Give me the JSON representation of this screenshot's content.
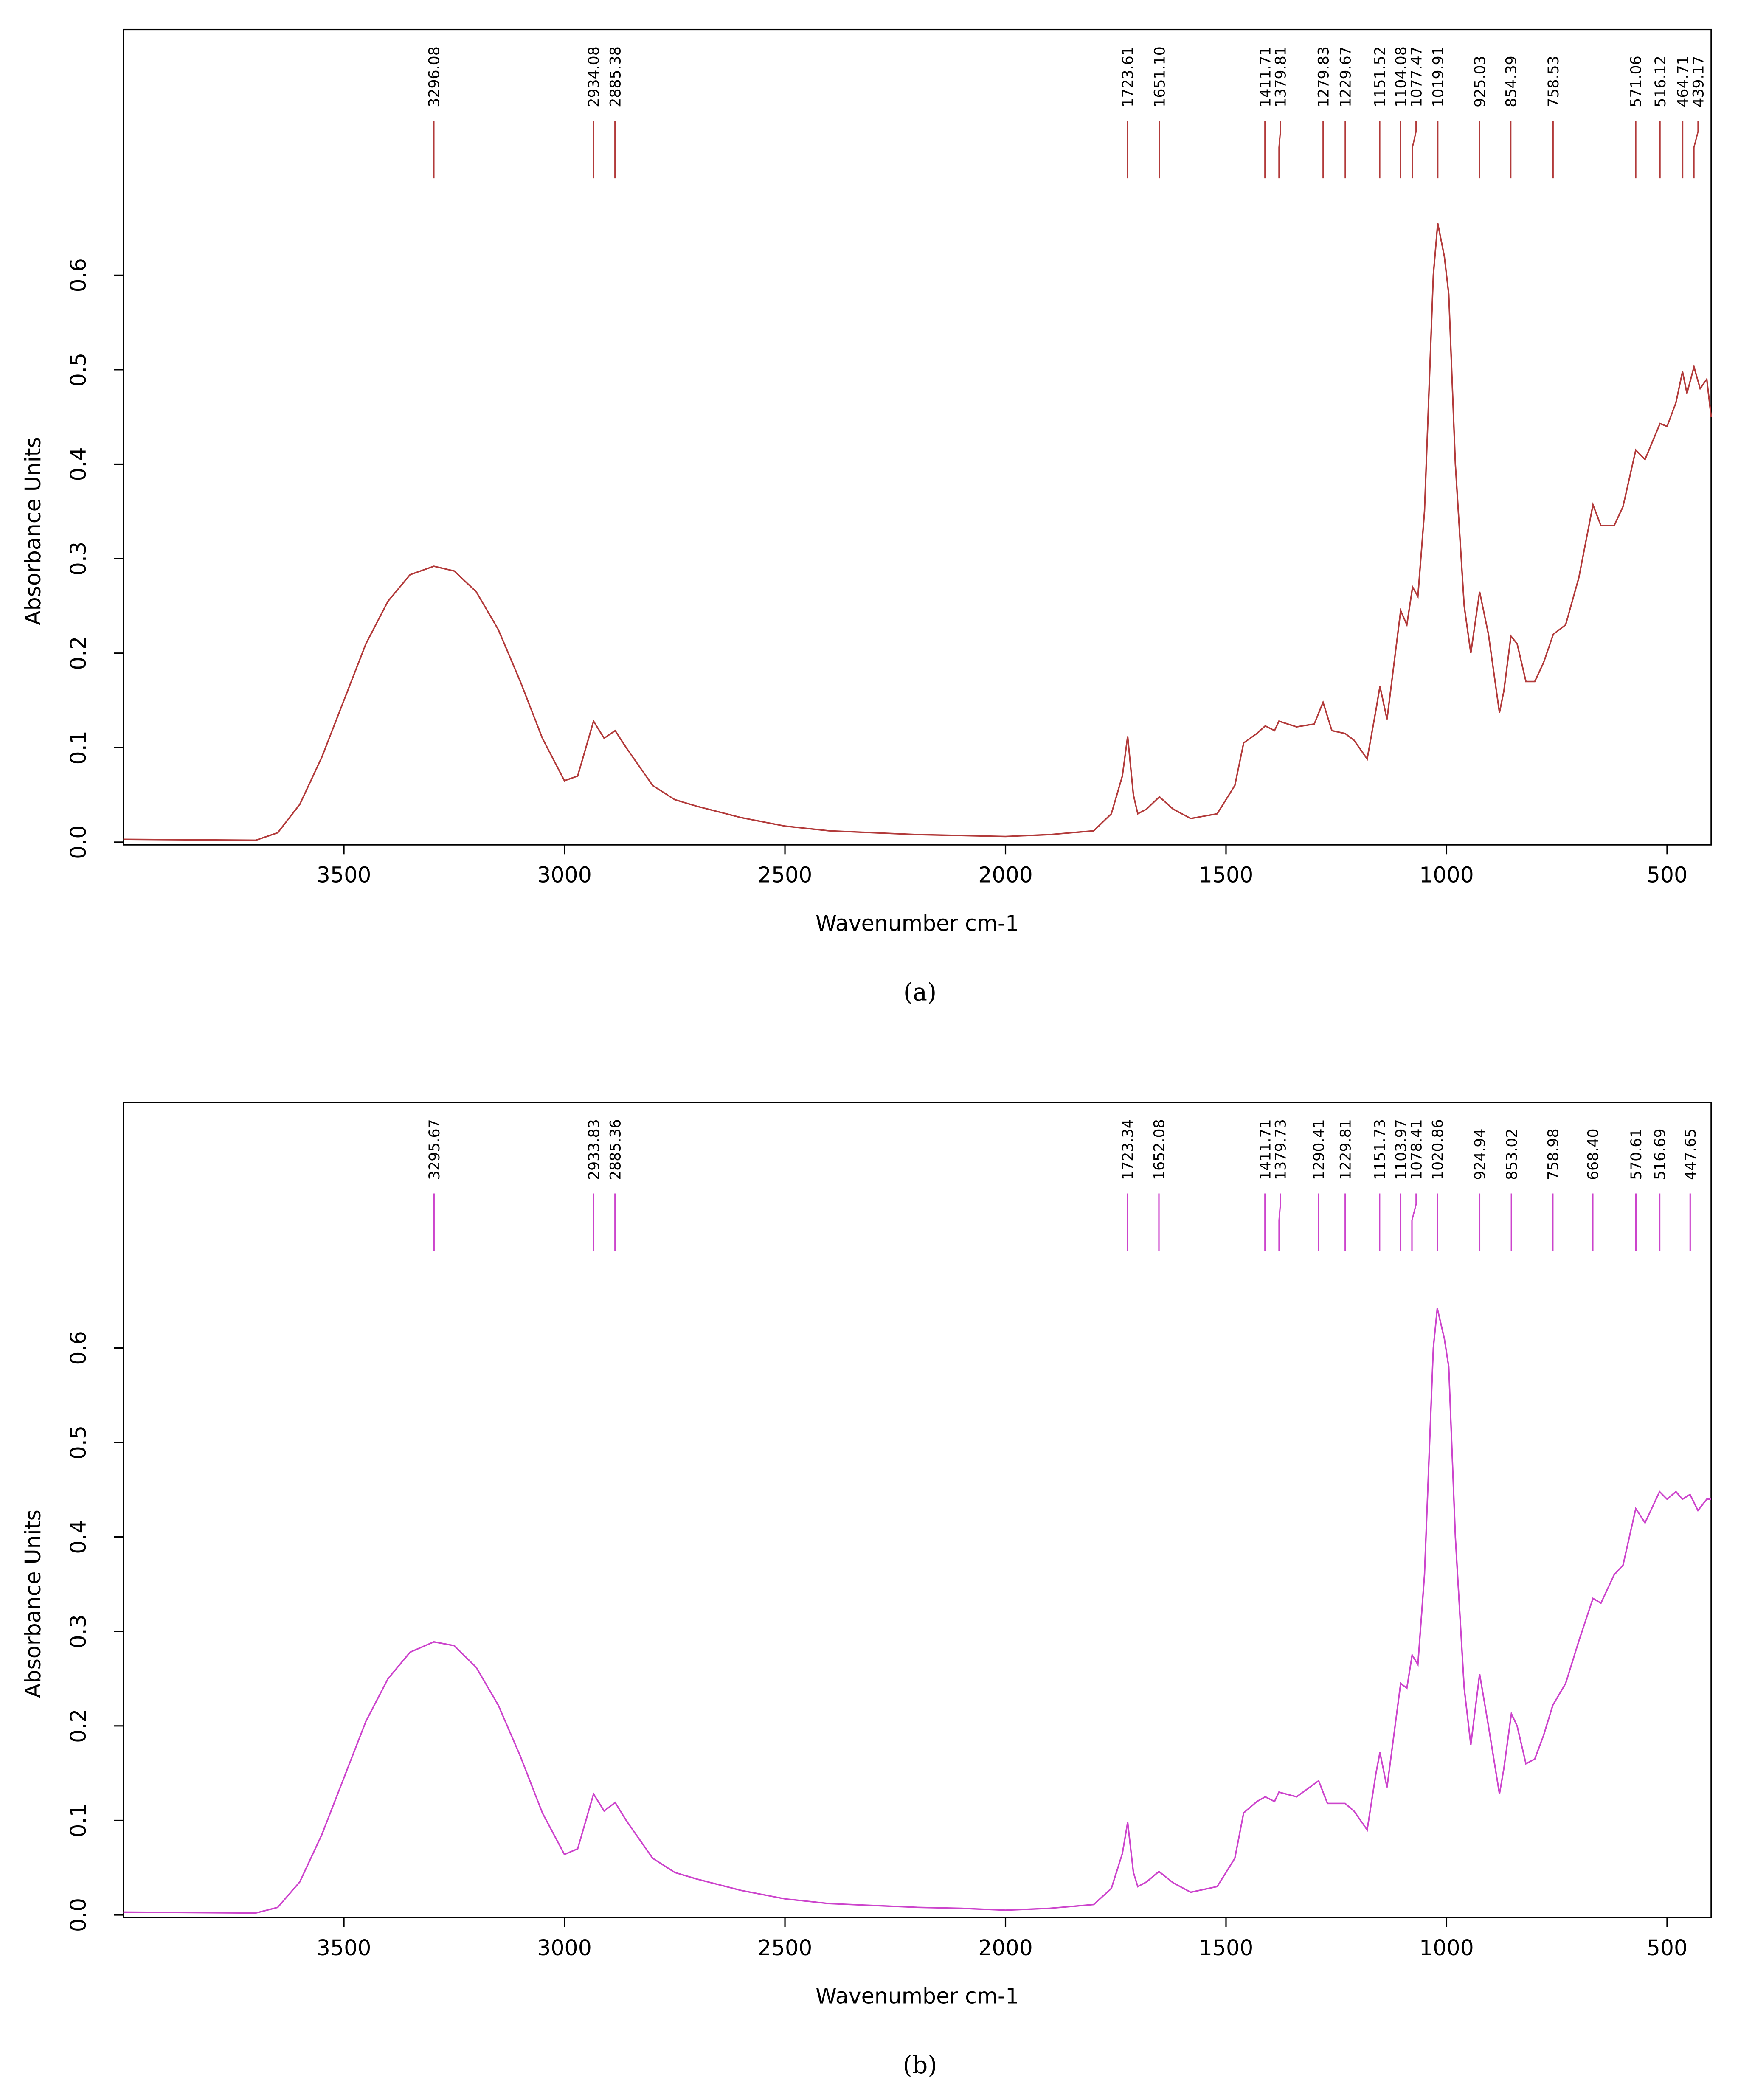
{
  "chart_data": [
    {
      "type": "line",
      "caption": "(a)",
      "xlabel": "Wavenumber  cm-1",
      "ylabel": "Absorbance Units",
      "xlim": [
        4000,
        400
      ],
      "ylim": [
        0,
        0.86
      ],
      "xticks": [
        3500,
        3000,
        2500,
        2000,
        1500,
        1000,
        500
      ],
      "yticks": [
        {
          "value": 0,
          "label": "0.0"
        },
        0.1,
        0.2,
        0.3,
        0.4,
        0.5,
        0.6
      ],
      "series": [
        {
          "color": "#b23a3a",
          "x": [
            4000,
            3700,
            3650,
            3600,
            3550,
            3500,
            3450,
            3400,
            3350,
            3296,
            3250,
            3200,
            3150,
            3100,
            3050,
            3000,
            2970,
            2934,
            2910,
            2885,
            2860,
            2800,
            2750,
            2700,
            2600,
            2500,
            2400,
            2300,
            2200,
            2100,
            2000,
            1900,
            1800,
            1760,
            1735,
            1723,
            1710,
            1700,
            1680,
            1651,
            1620,
            1580,
            1520,
            1480,
            1460,
            1430,
            1411,
            1390,
            1380,
            1340,
            1300,
            1280,
            1260,
            1230,
            1210,
            1180,
            1160,
            1151,
            1135,
            1104,
            1090,
            1077,
            1065,
            1050,
            1030,
            1020,
            1005,
            995,
            980,
            960,
            945,
            925,
            905,
            880,
            870,
            854,
            840,
            820,
            800,
            780,
            758,
            730,
            700,
            668,
            650,
            620,
            600,
            571,
            550,
            516,
            500,
            480,
            465,
            455,
            439,
            425,
            410,
            400
          ],
          "values": [
            0.003,
            0.002,
            0.01,
            0.04,
            0.09,
            0.15,
            0.21,
            0.255,
            0.283,
            0.292,
            0.287,
            0.265,
            0.225,
            0.17,
            0.11,
            0.065,
            0.07,
            0.128,
            0.11,
            0.118,
            0.1,
            0.06,
            0.045,
            0.038,
            0.026,
            0.017,
            0.012,
            0.01,
            0.008,
            0.007,
            0.006,
            0.008,
            0.012,
            0.03,
            0.07,
            0.112,
            0.05,
            0.03,
            0.035,
            0.048,
            0.035,
            0.025,
            0.03,
            0.06,
            0.105,
            0.115,
            0.123,
            0.118,
            0.128,
            0.122,
            0.125,
            0.148,
            0.118,
            0.115,
            0.108,
            0.088,
            0.14,
            0.165,
            0.13,
            0.245,
            0.23,
            0.27,
            0.26,
            0.35,
            0.6,
            0.655,
            0.62,
            0.58,
            0.4,
            0.25,
            0.2,
            0.265,
            0.22,
            0.137,
            0.16,
            0.218,
            0.21,
            0.17,
            0.17,
            0.19,
            0.22,
            0.23,
            0.28,
            0.357,
            0.335,
            0.335,
            0.355,
            0.415,
            0.405,
            0.443,
            0.44,
            0.465,
            0.498,
            0.475,
            0.503,
            0.48,
            0.49,
            0.45
          ]
        }
      ],
      "peaks": [
        {
          "value": 3296.08,
          "label": "3296.08"
        },
        {
          "value": 2934.08,
          "label": "2934.08"
        },
        {
          "value": 2885.38,
          "label": "2885.38"
        },
        {
          "value": 1723.61,
          "label": "1723.61"
        },
        {
          "value": 1651.1,
          "label": "1651.10"
        },
        {
          "value": 1411.71,
          "label": "1411.71"
        },
        {
          "value": 1379.81,
          "label": "1379.81"
        },
        {
          "value": 1279.83,
          "label": "1279.83"
        },
        {
          "value": 1229.67,
          "label": "1229.67"
        },
        {
          "value": 1151.52,
          "label": "1151.52"
        },
        {
          "value": 1104.08,
          "label": "1104.08"
        },
        {
          "value": 1077.47,
          "label": "1077.47"
        },
        {
          "value": 1019.91,
          "label": "1019.91"
        },
        {
          "value": 925.03,
          "label": "925.03"
        },
        {
          "value": 854.39,
          "label": "854.39"
        },
        {
          "value": 758.53,
          "label": "758.53"
        },
        {
          "value": 571.06,
          "label": "571.06"
        },
        {
          "value": 516.12,
          "label": "516.12"
        },
        {
          "value": 464.71,
          "label": "464.71"
        },
        {
          "value": 439.17,
          "label": "439.17"
        }
      ]
    },
    {
      "type": "line",
      "caption": "(b)",
      "xlabel": "Wavenumber  cm-1",
      "ylabel": "Absorbance Units",
      "xlim": [
        4000,
        400
      ],
      "ylim": [
        0,
        0.86
      ],
      "xticks": [
        3500,
        3000,
        2500,
        2000,
        1500,
        1000,
        500
      ],
      "yticks": [
        {
          "value": 0,
          "label": "0.0"
        },
        0.1,
        0.2,
        0.3,
        0.4,
        0.5,
        0.6
      ],
      "series": [
        {
          "color": "#cc44cc",
          "x": [
            4000,
            3700,
            3650,
            3600,
            3550,
            3500,
            3450,
            3400,
            3350,
            3296,
            3250,
            3200,
            3150,
            3100,
            3050,
            3000,
            2970,
            2934,
            2910,
            2885,
            2860,
            2800,
            2750,
            2700,
            2600,
            2500,
            2400,
            2300,
            2200,
            2100,
            2000,
            1900,
            1800,
            1760,
            1735,
            1723,
            1710,
            1700,
            1680,
            1652,
            1620,
            1580,
            1520,
            1480,
            1460,
            1430,
            1411,
            1390,
            1380,
            1340,
            1290,
            1270,
            1230,
            1210,
            1180,
            1160,
            1151,
            1135,
            1104,
            1090,
            1078,
            1065,
            1050,
            1030,
            1021,
            1005,
            995,
            980,
            960,
            945,
            925,
            905,
            880,
            870,
            853,
            840,
            820,
            800,
            780,
            759,
            730,
            700,
            668,
            650,
            620,
            600,
            571,
            550,
            517,
            500,
            480,
            465,
            448,
            430,
            410,
            400
          ],
          "values": [
            0.003,
            0.002,
            0.008,
            0.035,
            0.085,
            0.145,
            0.205,
            0.25,
            0.278,
            0.289,
            0.285,
            0.262,
            0.222,
            0.168,
            0.108,
            0.064,
            0.07,
            0.128,
            0.11,
            0.119,
            0.1,
            0.06,
            0.045,
            0.038,
            0.026,
            0.017,
            0.012,
            0.01,
            0.008,
            0.007,
            0.005,
            0.007,
            0.011,
            0.028,
            0.065,
            0.098,
            0.045,
            0.03,
            0.035,
            0.046,
            0.034,
            0.024,
            0.03,
            0.06,
            0.108,
            0.12,
            0.125,
            0.12,
            0.13,
            0.125,
            0.142,
            0.118,
            0.118,
            0.11,
            0.09,
            0.15,
            0.172,
            0.135,
            0.245,
            0.24,
            0.275,
            0.265,
            0.36,
            0.6,
            0.642,
            0.61,
            0.58,
            0.4,
            0.24,
            0.18,
            0.255,
            0.2,
            0.128,
            0.155,
            0.213,
            0.2,
            0.16,
            0.165,
            0.19,
            0.222,
            0.245,
            0.29,
            0.335,
            0.33,
            0.36,
            0.37,
            0.43,
            0.415,
            0.448,
            0.44,
            0.448,
            0.44,
            0.445,
            0.428,
            0.44,
            0.44
          ]
        }
      ],
      "peaks": [
        {
          "value": 3295.67,
          "label": "3295.67"
        },
        {
          "value": 2933.83,
          "label": "2933.83"
        },
        {
          "value": 2885.36,
          "label": "2885.36"
        },
        {
          "value": 1723.34,
          "label": "1723.34"
        },
        {
          "value": 1652.08,
          "label": "1652.08"
        },
        {
          "value": 1411.71,
          "label": "1411.71"
        },
        {
          "value": 1379.73,
          "label": "1379.73"
        },
        {
          "value": 1290.41,
          "label": "1290.41"
        },
        {
          "value": 1229.81,
          "label": "1229.81"
        },
        {
          "value": 1151.73,
          "label": "1151.73"
        },
        {
          "value": 1103.97,
          "label": "1103.97"
        },
        {
          "value": 1078.41,
          "label": "1078.41"
        },
        {
          "value": 1020.86,
          "label": "1020.86"
        },
        {
          "value": 924.94,
          "label": "924.94"
        },
        {
          "value": 853.02,
          "label": "853.02"
        },
        {
          "value": 758.98,
          "label": "758.98"
        },
        {
          "value": 668.4,
          "label": "668.40"
        },
        {
          "value": 570.61,
          "label": "570.61"
        },
        {
          "value": 516.69,
          "label": "516.69"
        },
        {
          "value": 447.65,
          "label": "447.65"
        }
      ]
    }
  ]
}
